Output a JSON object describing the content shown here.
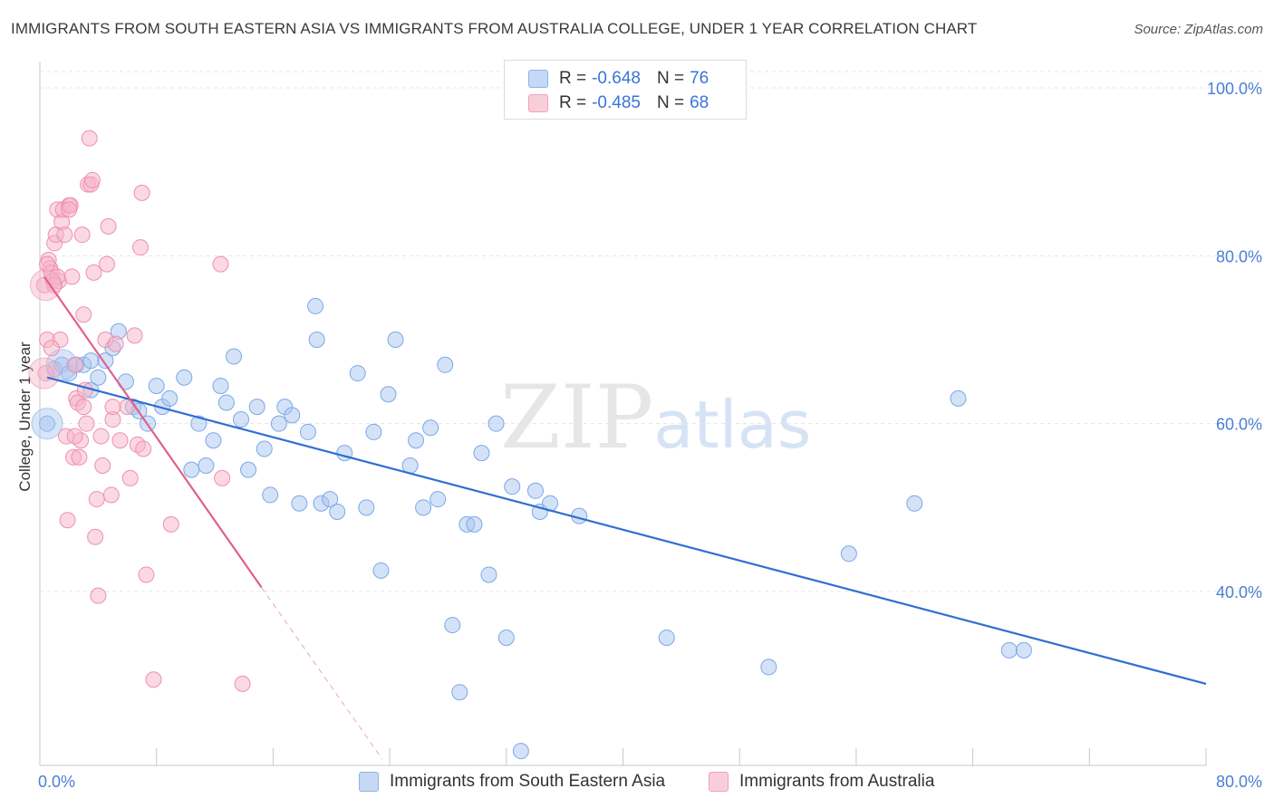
{
  "header": {
    "title": "IMMIGRANTS FROM SOUTH EASTERN ASIA VS IMMIGRANTS FROM AUSTRALIA COLLEGE, UNDER 1 YEAR CORRELATION CHART",
    "source": "Source: ZipAtlas.com"
  },
  "watermark": {
    "zip": "ZIP",
    "atlas": "atlas"
  },
  "legend": {
    "rows": [
      {
        "r_label": "R = ",
        "r_value": "-0.648",
        "n_label": "N = ",
        "n_value": "76",
        "color": "#a9c6ef"
      },
      {
        "r_label": "R = ",
        "r_value": "-0.485",
        "n_label": "N = ",
        "n_value": "68",
        "color": "#f5b3c8"
      }
    ]
  },
  "bottom_legend": {
    "series1": "Immigrants from South Eastern Asia",
    "series2": "Immigrants from Australia"
  },
  "chart_data": {
    "type": "scatter",
    "title": "IMMIGRANTS FROM SOUTH EASTERN ASIA VS IMMIGRANTS FROM AUSTRALIA COLLEGE, UNDER 1 YEAR CORRELATION CHART",
    "xlabel": "",
    "ylabel": "College, Under 1 year",
    "xlim": [
      0,
      80
    ],
    "ylim": [
      20,
      100
    ],
    "x_ticks": [
      "0.0%",
      "80.0%"
    ],
    "y_ticks": [
      {
        "value": 100,
        "label": "100.0%"
      },
      {
        "value": 80,
        "label": "80.0%"
      },
      {
        "value": 60,
        "label": "60.0%"
      },
      {
        "value": 40,
        "label": "40.0%"
      }
    ],
    "grid": true,
    "legend_position": "top-center",
    "series": [
      {
        "name": "Immigrants from South Eastern Asia",
        "color": "#7aa8e8",
        "fill": "#a9c6ef",
        "line_color": "#2f6fd0",
        "r": -0.648,
        "n": 76,
        "trend": {
          "x0": 0.5,
          "y0": 65.5,
          "x1": 80,
          "y1": 29.0
        },
        "points": [
          [
            0.5,
            60.0
          ],
          [
            1.0,
            66.5
          ],
          [
            1.5,
            67.0
          ],
          [
            2.0,
            66.0
          ],
          [
            2.5,
            67.0
          ],
          [
            3.0,
            67.0
          ],
          [
            3.5,
            64.0
          ],
          [
            4.0,
            65.5
          ],
          [
            4.5,
            67.5
          ],
          [
            5.0,
            69.0
          ],
          [
            5.4,
            71.0
          ],
          [
            5.9,
            65.0
          ],
          [
            6.4,
            62.0
          ],
          [
            6.8,
            61.5
          ],
          [
            7.4,
            60.0
          ],
          [
            8.0,
            64.5
          ],
          [
            8.4,
            62.0
          ],
          [
            8.9,
            63.0
          ],
          [
            9.9,
            65.5
          ],
          [
            10.4,
            54.5
          ],
          [
            10.9,
            60.0
          ],
          [
            11.4,
            55.0
          ],
          [
            11.9,
            58.0
          ],
          [
            12.4,
            64.5
          ],
          [
            12.8,
            62.5
          ],
          [
            13.3,
            68.0
          ],
          [
            13.8,
            60.5
          ],
          [
            14.3,
            54.5
          ],
          [
            14.9,
            62.0
          ],
          [
            15.4,
            57.0
          ],
          [
            15.8,
            51.5
          ],
          [
            16.4,
            60.0
          ],
          [
            16.8,
            62.0
          ],
          [
            17.3,
            61.0
          ],
          [
            17.8,
            50.5
          ],
          [
            18.4,
            59.0
          ],
          [
            18.9,
            74.0
          ],
          [
            19.0,
            70.0
          ],
          [
            19.3,
            50.5
          ],
          [
            19.9,
            51.0
          ],
          [
            20.4,
            49.5
          ],
          [
            20.9,
            56.5
          ],
          [
            21.8,
            66.0
          ],
          [
            22.4,
            50.0
          ],
          [
            22.9,
            59.0
          ],
          [
            23.4,
            42.5
          ],
          [
            23.9,
            63.5
          ],
          [
            24.4,
            70.0
          ],
          [
            25.4,
            55.0
          ],
          [
            25.8,
            58.0
          ],
          [
            26.3,
            50.0
          ],
          [
            26.8,
            59.5
          ],
          [
            27.3,
            51.0
          ],
          [
            27.8,
            67.0
          ],
          [
            28.3,
            36.0
          ],
          [
            28.8,
            28.0
          ],
          [
            29.3,
            48.0
          ],
          [
            29.8,
            48.0
          ],
          [
            30.3,
            56.5
          ],
          [
            30.8,
            42.0
          ],
          [
            31.3,
            60.0
          ],
          [
            32.0,
            34.5
          ],
          [
            32.4,
            52.5
          ],
          [
            33.0,
            21.0
          ],
          [
            34.0,
            52.0
          ],
          [
            34.3,
            49.5
          ],
          [
            35.0,
            50.5
          ],
          [
            37.0,
            49.0
          ],
          [
            43.0,
            34.5
          ],
          [
            50.0,
            31.0
          ],
          [
            55.5,
            44.5
          ],
          [
            60.0,
            50.5
          ],
          [
            63.0,
            63.0
          ],
          [
            66.5,
            33.0
          ],
          [
            67.5,
            33.0
          ],
          [
            3.5,
            67.5
          ]
        ],
        "big_points": [
          [
            0.5,
            60.0
          ],
          [
            1.5,
            67.0
          ]
        ]
      },
      {
        "name": "Immigrants from Australia",
        "color": "#ef8fb0",
        "fill": "#f5b3c8",
        "line_color": "#e0608e",
        "r": -0.485,
        "n": 68,
        "trend": {
          "x0": 0.3,
          "y0": 77.5,
          "x1": 15.2,
          "y1": 40.5
        },
        "trend_dashed": {
          "x0": 15.2,
          "y0": 40.5,
          "x1": 23.5,
          "y1": 20.0
        },
        "points": [
          [
            0.3,
            76.5
          ],
          [
            0.4,
            66.0
          ],
          [
            0.5,
            70.0
          ],
          [
            0.6,
            79.5
          ],
          [
            0.7,
            78.5
          ],
          [
            0.8,
            78.0
          ],
          [
            0.9,
            77.0
          ],
          [
            1.0,
            81.5
          ],
          [
            1.1,
            82.5
          ],
          [
            1.2,
            85.5
          ],
          [
            1.3,
            77.0
          ],
          [
            1.4,
            70.0
          ],
          [
            1.5,
            84.0
          ],
          [
            1.6,
            85.5
          ],
          [
            1.7,
            82.5
          ],
          [
            1.8,
            58.5
          ],
          [
            1.9,
            48.5
          ],
          [
            2.0,
            86.0
          ],
          [
            2.1,
            86.0
          ],
          [
            2.2,
            77.5
          ],
          [
            2.3,
            56.0
          ],
          [
            2.4,
            67.0
          ],
          [
            2.5,
            63.0
          ],
          [
            2.6,
            62.5
          ],
          [
            2.7,
            56.0
          ],
          [
            2.8,
            58.0
          ],
          [
            2.9,
            82.5
          ],
          [
            3.0,
            73.0
          ],
          [
            3.1,
            64.0
          ],
          [
            3.2,
            60.0
          ],
          [
            3.3,
            88.5
          ],
          [
            3.4,
            94.0
          ],
          [
            3.5,
            88.5
          ],
          [
            3.6,
            89.0
          ],
          [
            3.7,
            78.0
          ],
          [
            3.8,
            46.5
          ],
          [
            3.9,
            51.0
          ],
          [
            4.0,
            39.5
          ],
          [
            4.2,
            58.5
          ],
          [
            4.3,
            55.0
          ],
          [
            4.5,
            70.0
          ],
          [
            4.6,
            79.0
          ],
          [
            4.7,
            83.5
          ],
          [
            4.9,
            51.5
          ],
          [
            5.0,
            60.5
          ],
          [
            5.2,
            69.5
          ],
          [
            5.5,
            58.0
          ],
          [
            6.0,
            62.0
          ],
          [
            6.2,
            53.5
          ],
          [
            6.5,
            70.5
          ],
          [
            6.7,
            57.5
          ],
          [
            6.9,
            81.0
          ],
          [
            7.0,
            87.5
          ],
          [
            7.1,
            57.0
          ],
          [
            7.3,
            42.0
          ],
          [
            7.8,
            29.5
          ],
          [
            9.0,
            48.0
          ],
          [
            12.4,
            79.0
          ],
          [
            12.5,
            53.5
          ],
          [
            13.9,
            29.0
          ],
          [
            0.8,
            69.0
          ],
          [
            1.2,
            77.5
          ],
          [
            2.0,
            85.5
          ],
          [
            0.5,
            79.0
          ],
          [
            1.0,
            76.5
          ],
          [
            2.4,
            58.5
          ],
          [
            3.0,
            62.0
          ],
          [
            5.0,
            62.0
          ]
        ],
        "big_points": [
          [
            0.3,
            66.0
          ],
          [
            0.4,
            76.5
          ]
        ]
      }
    ]
  }
}
